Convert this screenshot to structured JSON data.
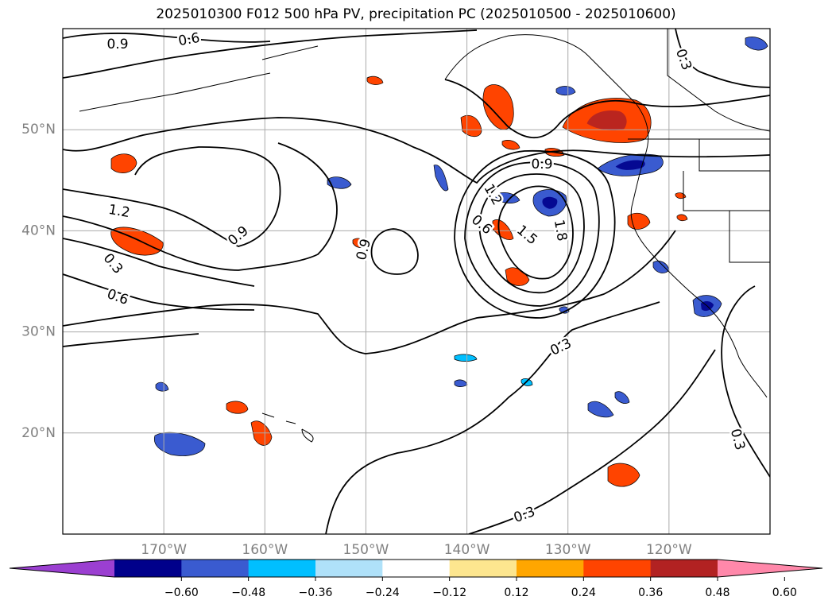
{
  "chart_data": {
    "type": "heatmap",
    "title": "2025010300 F012 500 hPa PV, precipitation PC (2025010500 - 2025010600)",
    "map": {
      "lon_range": [
        -180,
        -110
      ],
      "lat_range": [
        10,
        60
      ],
      "x_ticks": [
        "170°W",
        "160°W",
        "150°W",
        "140°W",
        "130°W",
        "120°W"
      ],
      "y_ticks": [
        "50°N",
        "40°N",
        "30°N",
        "20°N"
      ],
      "grid": true
    },
    "colorbar": {
      "orientation": "horizontal",
      "extend": "both",
      "tick_labels": [
        "−0.60",
        "−0.48",
        "−0.36",
        "−0.24",
        "−0.12",
        "0.12",
        "0.24",
        "0.36",
        "0.48",
        "0.60"
      ],
      "colors": [
        "#9b3fd1",
        "#00008b",
        "#3a5bd0",
        "#00bfff",
        "#afe1f9",
        "#ffffff",
        "#fde68f",
        "#ffa600",
        "#ff4400",
        "#b22222",
        "#ff88aa"
      ]
    },
    "pv_contours": {
      "color": "#000000",
      "labels": [
        "0.9",
        "0.6",
        "0.3",
        "1.2",
        "0.9",
        "0.3",
        "0.6",
        "0.9",
        "0.9",
        "1.2",
        "0.6",
        "1.5",
        "1.8",
        "0.3",
        "0.3",
        "0.3"
      ]
    }
  }
}
